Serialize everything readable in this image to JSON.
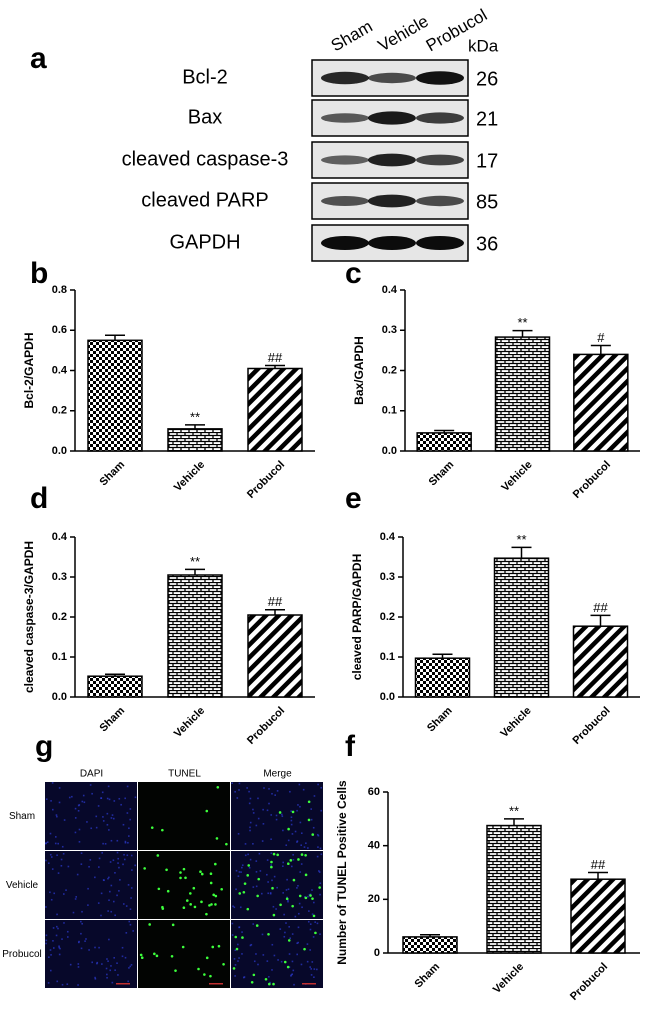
{
  "blot": {
    "panel": "a",
    "lanes": [
      "Sham",
      "Vehicle",
      "Probucol"
    ],
    "unit": "kDa",
    "rows": [
      {
        "label": "Bcl-2",
        "kda": 26
      },
      {
        "label": "Bax",
        "kda": 21
      },
      {
        "label": "cleaved caspase-3",
        "kda": 17
      },
      {
        "label": "cleaved PARP",
        "kda": 85
      },
      {
        "label": "GAPDH",
        "kda": 36
      }
    ]
  },
  "chart_data": [
    {
      "type": "bar",
      "panel": "b",
      "y_label": "Bcl-2/GAPDH",
      "categories": [
        "Sham",
        "Vehicle",
        "Probucol"
      ],
      "values": [
        0.55,
        0.11,
        0.41
      ],
      "errors": [
        0.025,
        0.02,
        0.015
      ],
      "annotations": [
        null,
        "**",
        "##"
      ],
      "fills": [
        "checker",
        "brick",
        "diagonal"
      ],
      "ylim": [
        0,
        0.8
      ],
      "yticks": [
        {
          "value": 0,
          "label": "0.0"
        },
        0.2,
        0.4,
        0.6,
        0.8
      ]
    },
    {
      "type": "bar",
      "panel": "c",
      "y_label": "Bax/GAPDH",
      "categories": [
        "Sham",
        "Vehicle",
        "Probucol"
      ],
      "values": [
        0.045,
        0.283,
        0.24
      ],
      "errors": [
        0.006,
        0.016,
        0.022
      ],
      "annotations": [
        null,
        "**",
        "#"
      ],
      "fills": [
        "checker",
        "brick",
        "diagonal"
      ],
      "ylim": [
        0,
        0.4
      ],
      "yticks": [
        {
          "value": 0,
          "label": "0.0"
        },
        0.1,
        0.2,
        0.3,
        0.4
      ]
    },
    {
      "type": "bar",
      "panel": "d",
      "y_label": "cleaved caspase-3/GAPDH",
      "categories": [
        "Sham",
        "Vehicle",
        "Probucol"
      ],
      "values": [
        0.052,
        0.305,
        0.205
      ],
      "errors": [
        0.005,
        0.014,
        0.013
      ],
      "annotations": [
        null,
        "**",
        "##"
      ],
      "fills": [
        "checker",
        "brick",
        "diagonal"
      ],
      "ylim": [
        0,
        0.4
      ],
      "yticks": [
        {
          "value": 0,
          "label": "0.0"
        },
        0.1,
        0.2,
        0.3,
        0.4
      ]
    },
    {
      "type": "bar",
      "panel": "e",
      "y_label": "cleaved PARP/GAPDH",
      "categories": [
        "Sham",
        "Vehicle",
        "Probucol"
      ],
      "values": [
        0.097,
        0.347,
        0.177
      ],
      "errors": [
        0.01,
        0.027,
        0.027
      ],
      "annotations": [
        null,
        "**",
        "##"
      ],
      "fills": [
        "checker",
        "brick",
        "diagonal"
      ],
      "ylim": [
        0,
        0.4
      ],
      "yticks": [
        {
          "value": 0,
          "label": "0.0"
        },
        0.1,
        0.2,
        0.3,
        0.4
      ]
    },
    {
      "type": "bar",
      "panel": "f",
      "y_label": "Number of TUNEL Positive Cells",
      "categories": [
        "Sham",
        "Vehicle",
        "Probucol"
      ],
      "values": [
        6,
        47.5,
        27.5
      ],
      "errors": [
        0.8,
        2.5,
        2.5
      ],
      "annotations": [
        null,
        "**",
        "##"
      ],
      "fills": [
        "checker",
        "brick",
        "diagonal"
      ],
      "ylim": [
        0,
        60
      ],
      "yticks": [
        0,
        20,
        40,
        60
      ]
    }
  ],
  "tunel": {
    "panel": "g",
    "columns": [
      "DAPI",
      "TUNEL",
      "Merge"
    ],
    "rows": [
      "Sham",
      "Vehicle",
      "Probucol"
    ]
  }
}
